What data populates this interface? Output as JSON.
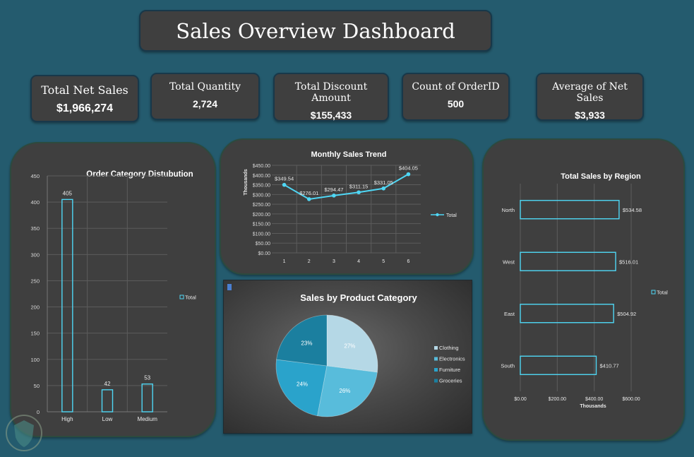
{
  "dashboard": {
    "title": "Sales Overview Dashboard"
  },
  "kpis": [
    {
      "label": "Total Net Sales",
      "value": "$1,966,274"
    },
    {
      "label": "Total Quantity",
      "value": "2,724"
    },
    {
      "label": "Total Discount Amount",
      "value": "$155,433"
    },
    {
      "label": "Count of OrderID",
      "value": "500"
    },
    {
      "label": "Average of Net Sales",
      "value": "$3,933"
    }
  ],
  "colors": {
    "background": "#245b6e",
    "panel": "#3f3f3f",
    "accent": "#39c4e8",
    "glow": "#4fd7f5"
  },
  "chart_data": [
    {
      "id": "category",
      "type": "bar",
      "title": "Order Category Distubution",
      "categories": [
        "High",
        "Low",
        "Medium"
      ],
      "series": [
        {
          "name": "Total",
          "values": [
            405,
            42,
            53
          ]
        }
      ],
      "data_labels": [
        "405",
        "42",
        "53"
      ],
      "yticks": [
        "0",
        "50",
        "100",
        "150",
        "200",
        "250",
        "300",
        "350",
        "400",
        "450"
      ],
      "ylim": [
        0,
        450
      ],
      "legend": "right",
      "grid": true
    },
    {
      "id": "trend",
      "type": "line",
      "title": "Monthly Sales Trend",
      "ylabel": "Thousands",
      "x": [
        "1",
        "2",
        "3",
        "4",
        "5",
        "6"
      ],
      "series": [
        {
          "name": "Total",
          "values": [
            349.54,
            276.01,
            294.47,
            311.15,
            331.05,
            404.05
          ]
        }
      ],
      "data_labels": [
        "$349.54",
        "$276.01",
        "$294.47",
        "$311.15",
        "$331.05",
        "$404.05"
      ],
      "yticks": [
        "$0.00",
        "$50.00",
        "$100.00",
        "$150.00",
        "$200.00",
        "$250.00",
        "$300.00",
        "$350.00",
        "$400.00",
        "$450.00"
      ],
      "ylim": [
        0,
        450
      ],
      "legend": "right",
      "grid": true
    },
    {
      "id": "product",
      "type": "pie",
      "title": "Sales by Product Category",
      "labels": [
        "Clothing",
        "Electronics",
        "Furniture",
        "Groceries"
      ],
      "values": [
        27,
        26,
        24,
        23
      ],
      "data_labels": [
        "27%",
        "26%",
        "24%",
        "23%"
      ],
      "colors": [
        "#b5d8e6",
        "#58bcdb",
        "#2aa3cb",
        "#1b7f9f"
      ],
      "legend": "right"
    },
    {
      "id": "region",
      "type": "bar",
      "orientation": "horizontal",
      "title": "Total Sales by Region",
      "xlabel": "Thousands",
      "categories": [
        "North",
        "West",
        "East",
        "South"
      ],
      "series": [
        {
          "name": "Total",
          "values": [
            534.58,
            516.01,
            504.92,
            410.77
          ]
        }
      ],
      "data_labels": [
        "$534.58",
        "$516.01",
        "$504.92",
        "$410.77"
      ],
      "xticks": [
        "$0.00",
        "$200.00",
        "$400.00",
        "$600.00"
      ],
      "xlim": [
        0,
        600
      ],
      "legend": "right",
      "grid": true
    }
  ]
}
